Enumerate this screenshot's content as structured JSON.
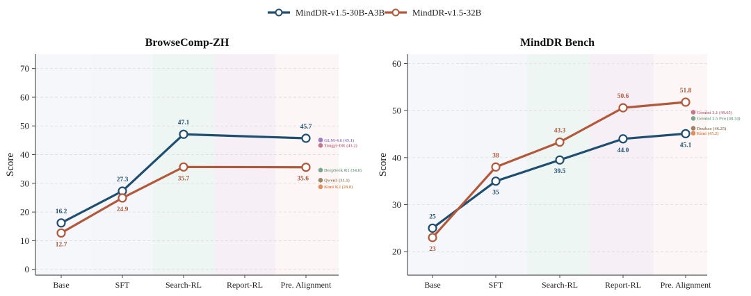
{
  "legend": {
    "series": [
      {
        "name": "MindDR-v1.5-30B-A3B",
        "color": "#1f4e70"
      },
      {
        "name": "MindDR-v1.5-32B",
        "color": "#b3583a"
      }
    ]
  },
  "stage_band_colors": [
    "#f5f7fa",
    "#f4f6f9",
    "#eef6f3",
    "#f6eff6",
    "#fcf6f7"
  ],
  "chart_data": [
    {
      "type": "line",
      "title": "BrowseComp-ZH",
      "xlabel": "",
      "ylabel": "Score",
      "categories": [
        "Base",
        "SFT",
        "Search-RL",
        "Report-RL",
        "Pre. Alignment"
      ],
      "ylim": [
        -2,
        75
      ],
      "yticks": [
        0,
        10,
        20,
        30,
        40,
        50,
        60,
        70
      ],
      "grid": true,
      "series": [
        {
          "name": "MindDR-v1.5-30B-A3B",
          "color": "#1f4e70",
          "points": [
            {
              "x": "Base",
              "y": 16.2,
              "label": "16.2"
            },
            {
              "x": "SFT",
              "y": 27.3,
              "label": "27.3"
            },
            {
              "x": "Search-RL",
              "y": 47.1,
              "label": "47.1"
            },
            {
              "x": "Pre. Alignment",
              "y": 45.7,
              "label": "45.7"
            }
          ],
          "label_pos": [
            "above",
            "above",
            "above",
            "above"
          ]
        },
        {
          "name": "MindDR-v1.5-32B",
          "color": "#b3583a",
          "points": [
            {
              "x": "Base",
              "y": 12.7,
              "label": "12.7"
            },
            {
              "x": "SFT",
              "y": 24.9,
              "label": "24.9"
            },
            {
              "x": "Search-RL",
              "y": 35.7,
              "label": "35.7"
            },
            {
              "x": "Pre. Alignment",
              "y": 35.6,
              "label": "35.6"
            }
          ],
          "label_pos": [
            "below",
            "below",
            "below",
            "left-below"
          ]
        }
      ],
      "reference_models": [
        {
          "name": "GLM-4.6",
          "value": 45.1,
          "label": "GLM-4.6 (45.1)",
          "color": "#9b7fc4"
        },
        {
          "name": "Tongyi-DR",
          "value": 43.2,
          "label": "Tongyi-DR (43.2)",
          "color": "#c4768f"
        },
        {
          "name": "DeepSeek R1",
          "value": 34.6,
          "label": "DeepSeek R1 (34.6)",
          "color": "#7aa58e"
        },
        {
          "name": "Qwen3",
          "value": 31.1,
          "label": "Qwen3 (31.1)",
          "color": "#9c8565"
        },
        {
          "name": "Kimi K2",
          "value": 28.8,
          "label": "Kimi K2 (28.8)",
          "color": "#e58b56"
        }
      ]
    },
    {
      "type": "line",
      "title": "MindDR Bench",
      "xlabel": "",
      "ylabel": "Score",
      "categories": [
        "Base",
        "SFT",
        "Search-RL",
        "Report-RL",
        "Pre. Alignment"
      ],
      "ylim": [
        15,
        62
      ],
      "yticks": [
        20,
        30,
        40,
        50,
        60
      ],
      "grid": true,
      "series": [
        {
          "name": "MindDR-v1.5-30B-A3B",
          "color": "#1f4e70",
          "points": [
            {
              "x": "Base",
              "y": 25,
              "label": "25"
            },
            {
              "x": "SFT",
              "y": 35,
              "label": "35"
            },
            {
              "x": "Search-RL",
              "y": 39.5,
              "label": "39.5"
            },
            {
              "x": "Report-RL",
              "y": 44.0,
              "label": "44.0"
            },
            {
              "x": "Pre. Alignment",
              "y": 45.1,
              "label": "45.1"
            }
          ],
          "label_pos": [
            "above",
            "below",
            "below",
            "below",
            "below"
          ]
        },
        {
          "name": "MindDR-v1.5-32B",
          "color": "#b3583a",
          "points": [
            {
              "x": "Base",
              "y": 23,
              "label": "23"
            },
            {
              "x": "SFT",
              "y": 38,
              "label": "38"
            },
            {
              "x": "Search-RL",
              "y": 43.3,
              "label": "43.3"
            },
            {
              "x": "Report-RL",
              "y": 50.6,
              "label": "50.6"
            },
            {
              "x": "Pre. Alignment",
              "y": 51.8,
              "label": "51.8"
            }
          ],
          "label_pos": [
            "below",
            "above",
            "above",
            "above",
            "above"
          ]
        }
      ],
      "reference_models": [
        {
          "name": "Gemini 3.1",
          "value": 49.65,
          "label": "Gemini 3.1 (49.65)",
          "color": "#c4768f"
        },
        {
          "name": "Gemini 2.5 Pro",
          "value": 48.34,
          "label": "Gemini 2.5 Pro (48.34)",
          "color": "#7aa58e"
        },
        {
          "name": "Doubao",
          "value": 46.25,
          "label": "Doubao (46.25)",
          "color": "#9c8565"
        },
        {
          "name": "Kimi",
          "value": 45.2,
          "label": "Kimi (45.2)",
          "color": "#e58b56"
        }
      ]
    }
  ]
}
